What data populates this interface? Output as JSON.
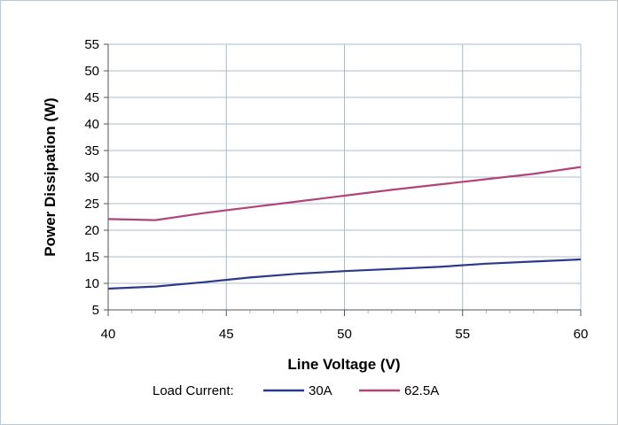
{
  "chart_data": {
    "type": "line",
    "title": "",
    "xlabel": "Line Voltage (V)",
    "ylabel": "Power Dissipation (W)",
    "xlim": [
      40,
      60
    ],
    "ylim": [
      5,
      55
    ],
    "x_ticks": [
      "40",
      "45",
      "50",
      "55",
      "60"
    ],
    "y_ticks": [
      "5",
      "10",
      "15",
      "20",
      "25",
      "30",
      "35",
      "40",
      "45",
      "50",
      "55"
    ],
    "grid": true,
    "legend": {
      "position": "bottom",
      "title": "Load Current:"
    },
    "series": [
      {
        "name": "30A",
        "color": "#2b3a8c",
        "x": [
          40,
          42,
          44,
          46,
          48,
          50,
          52,
          54,
          56,
          58,
          60
        ],
        "y": [
          9.0,
          9.4,
          10.2,
          11.1,
          11.8,
          12.3,
          12.7,
          13.1,
          13.7,
          14.1,
          14.5
        ]
      },
      {
        "name": "62.5A",
        "color": "#b0457a",
        "x": [
          40,
          42,
          44,
          46,
          48,
          50,
          52,
          54,
          56,
          58,
          60
        ],
        "y": [
          22.1,
          21.9,
          23.2,
          24.3,
          25.4,
          26.5,
          27.6,
          28.6,
          29.6,
          30.6,
          31.9
        ]
      }
    ]
  }
}
